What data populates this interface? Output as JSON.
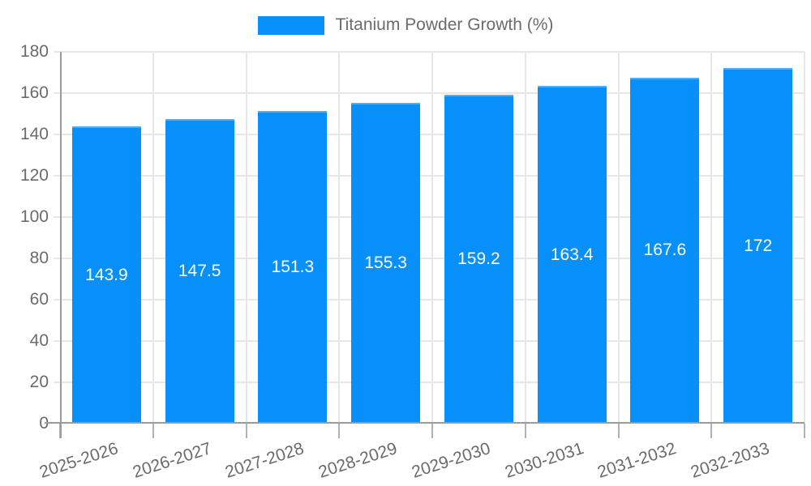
{
  "legend": {
    "label": "Titanium Powder Growth (%)",
    "swatch_color": "#0890fa"
  },
  "chart_data": {
    "type": "bar",
    "title": "Titanium Powder Growth (%)",
    "categories": [
      "2025-2026",
      "2026-2027",
      "2027-2028",
      "2028-2029",
      "2029-2030",
      "2030-2031",
      "2031-2032",
      "2032-2033"
    ],
    "values": [
      143.9,
      147.5,
      151.3,
      155.3,
      159.2,
      163.4,
      167.6,
      172
    ],
    "bar_labels": [
      "143.9",
      "147.5",
      "151.3",
      "155.3",
      "159.2",
      "163.4",
      "167.6",
      "172"
    ],
    "xlabel": "",
    "ylabel": "",
    "ylim": [
      0,
      180
    ],
    "ytick_step": 20,
    "yticks": [
      0,
      20,
      40,
      60,
      80,
      100,
      120,
      140,
      160,
      180
    ],
    "grid": true,
    "legend_position": "top-center",
    "bar_color": "#0890fa",
    "colors": {
      "grid": "#e7e7e7",
      "axis": "#9b9b9b",
      "tick": "#b3b3b3",
      "axis_text": "#6b6b6b",
      "bar_label_text": "#ffffff",
      "background": "#ffffff"
    }
  }
}
